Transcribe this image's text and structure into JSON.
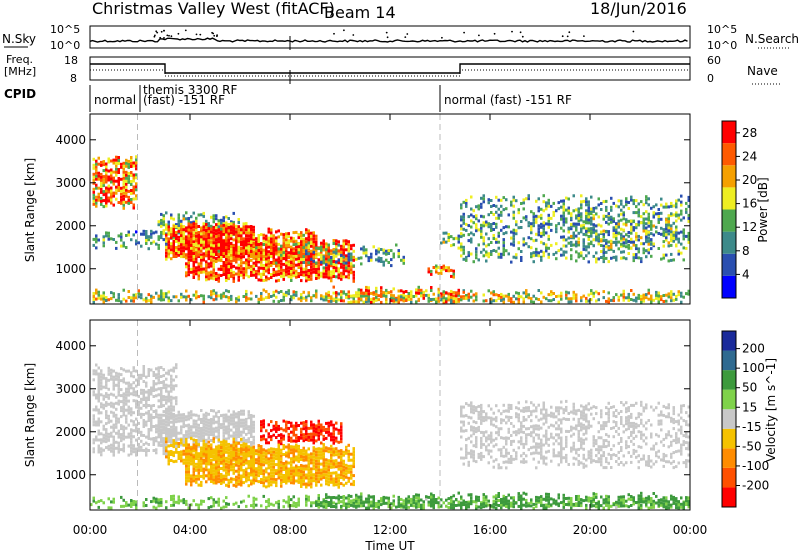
{
  "header": {
    "station": "Christmas Valley West (fitACF)",
    "beam": "Beam 14",
    "date": "18/Jun/2016"
  },
  "nsky_panel": {
    "left_label": "N.Sky",
    "right_label": "N.Search",
    "left_ticks": [
      "10^5",
      "10^0"
    ],
    "right_ticks": [
      "10^5",
      "10^0"
    ]
  },
  "freq_panel": {
    "left_label_1": "Freq.",
    "left_label_2": "[MHz]",
    "right_label": "Nave",
    "left_ticks": [
      "18",
      "8"
    ],
    "right_ticks": [
      "60",
      "0"
    ]
  },
  "cpid_panel": {
    "label": "CPID",
    "segments": [
      {
        "start_h": 0.0,
        "text": "normal",
        "text2": ""
      },
      {
        "start_h": 3.0,
        "text": "themis 3300 RF",
        "text2": "(fast) -151 RF"
      },
      {
        "start_h": 14.8,
        "text": "normal (fast) -151 RF",
        "text2": ""
      }
    ]
  },
  "x_axis": {
    "label": "Time UT",
    "range_h": [
      0,
      24
    ],
    "ticks": [
      {
        "h": 0,
        "label": "00:00"
      },
      {
        "h": 4,
        "label": "04:00"
      },
      {
        "h": 8,
        "label": "08:00"
      },
      {
        "h": 12,
        "label": "12:00"
      },
      {
        "h": 16,
        "label": "16:00"
      },
      {
        "h": 20,
        "label": "20:00"
      },
      {
        "h": 24,
        "label": "00:00"
      }
    ],
    "dashed_markers_h": [
      1.9,
      14.0
    ]
  },
  "chart_data": [
    {
      "type": "heatmap",
      "name": "power",
      "ylabel": "Slant Range [km]",
      "ylim": [
        180,
        4600
      ],
      "yticks": [
        1000,
        2000,
        3000,
        4000
      ],
      "colorbar_label": "Power [dB]",
      "colorbar_ticks": [
        4,
        8,
        12,
        16,
        20,
        24,
        28
      ],
      "colorbar_range": [
        0,
        30
      ],
      "colors": [
        "#0000ff",
        "#2a4fb0",
        "#3d8a8a",
        "#4fa84f",
        "#eeee22",
        "#f5a000",
        "#ff5a00",
        "#ff0000"
      ],
      "regions": [
        {
          "t0": 0.1,
          "t1": 1.9,
          "r0": 2450,
          "r1": 3500,
          "level": 22,
          "density": 0.7
        },
        {
          "t0": 0.1,
          "t1": 3.5,
          "r0": 1500,
          "r1": 1800,
          "level": 10,
          "density": 0.45
        },
        {
          "t0": 2.7,
          "t1": 6.0,
          "r0": 1700,
          "r1": 2250,
          "level": 12,
          "density": 0.5
        },
        {
          "t0": 3.0,
          "t1": 6.5,
          "r0": 1250,
          "r1": 2000,
          "level": 26,
          "density": 0.9
        },
        {
          "t0": 3.8,
          "t1": 10.5,
          "r0": 750,
          "r1": 1600,
          "level": 25,
          "density": 0.85
        },
        {
          "t0": 6.5,
          "t1": 9.0,
          "r0": 1250,
          "r1": 1850,
          "level": 24,
          "density": 0.7
        },
        {
          "t0": 8.5,
          "t1": 12.5,
          "r0": 1100,
          "r1": 1450,
          "level": 11,
          "density": 0.45
        },
        {
          "t0": 13.5,
          "t1": 14.5,
          "r0": 850,
          "r1": 1050,
          "level": 23,
          "density": 0.75
        },
        {
          "t0": 14.0,
          "t1": 14.8,
          "r0": 1500,
          "r1": 1800,
          "level": 14,
          "density": 0.5
        },
        {
          "t0": 14.8,
          "t1": 24.0,
          "r0": 1200,
          "r1": 2600,
          "level": 11,
          "density": 0.35
        },
        {
          "t0": 19.0,
          "t1": 23.5,
          "r0": 1500,
          "r1": 2200,
          "level": 13,
          "density": 0.4
        },
        {
          "t0": 0.0,
          "t1": 24.0,
          "r0": 180,
          "r1": 420,
          "level": 16,
          "density": 0.55
        },
        {
          "t0": 9.5,
          "t1": 15.0,
          "r0": 180,
          "r1": 480,
          "level": 20,
          "density": 0.55
        }
      ]
    },
    {
      "type": "heatmap",
      "name": "velocity",
      "ylabel": "Slant Range [km]",
      "ylim": [
        180,
        4600
      ],
      "yticks": [
        1000,
        2000,
        3000,
        4000
      ],
      "colorbar_label": "Velocity [m s^-1]",
      "colorbar_ticks": [
        200,
        100,
        50,
        15,
        -15,
        -50,
        -100,
        -200
      ],
      "colors": [
        "#1a2a9a",
        "#2f6a90",
        "#3d9a3d",
        "#7fd24a",
        "#c8c8c8",
        "#f5c200",
        "#ff8c00",
        "#ff5000",
        "#ff0000"
      ],
      "regions": [
        {
          "t0": 0.1,
          "t1": 3.5,
          "r0": 1500,
          "r1": 3500,
          "level": 0,
          "density": 0.55
        },
        {
          "t0": 2.7,
          "t1": 6.5,
          "r0": 1700,
          "r1": 2450,
          "level": 0,
          "density": 0.75
        },
        {
          "t0": 3.0,
          "t1": 6.5,
          "r0": 1250,
          "r1": 1800,
          "level": -40,
          "density": 0.6
        },
        {
          "t0": 6.8,
          "t1": 10.0,
          "r0": 1750,
          "r1": 2200,
          "level": -220,
          "density": 0.7
        },
        {
          "t0": 3.8,
          "t1": 10.5,
          "r0": 750,
          "r1": 1600,
          "level": -45,
          "density": 0.85
        },
        {
          "t0": 14.8,
          "t1": 24.0,
          "r0": 1200,
          "r1": 2600,
          "level": 0,
          "density": 0.4
        },
        {
          "t0": 0.0,
          "t1": 24.0,
          "r0": 180,
          "r1": 420,
          "level": 25,
          "density": 0.5
        },
        {
          "t0": 9.0,
          "t1": 24.0,
          "r0": 180,
          "r1": 480,
          "level": 40,
          "density": 0.5
        }
      ]
    }
  ]
}
